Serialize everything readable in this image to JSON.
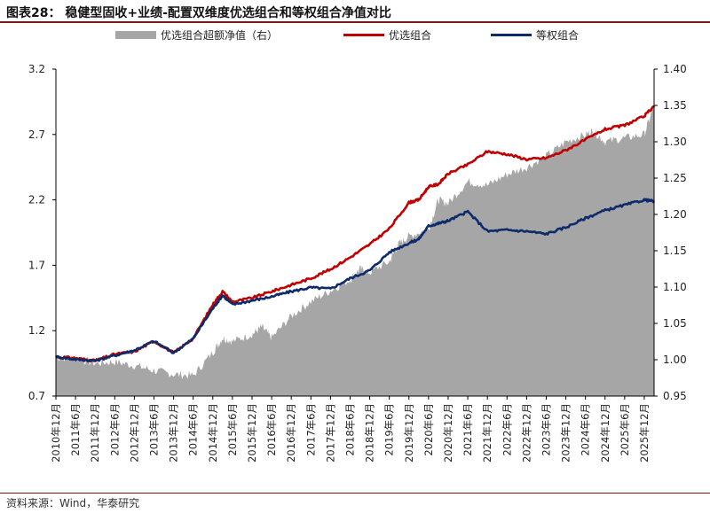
{
  "title": "图表28：  稳健型固收+业绩-配置双维度优选组合和等权组合净值对比",
  "source": "资料来源：Wind，华泰研究",
  "chart_data": {
    "type": "line",
    "title": "图表28：  稳健型固收+业绩-配置双维度优选组合和等权组合净值对比",
    "legend_position": "top",
    "grid": false,
    "x_tick_labels": [
      "2010年12月",
      "2011年6月",
      "2011年12月",
      "2012年6月",
      "2012年12月",
      "2013年6月",
      "2013年12月",
      "2014年6月",
      "2014年12月",
      "2015年6月",
      "2015年12月",
      "2016年6月",
      "2016年12月",
      "2017年6月",
      "2017年12月",
      "2018年6月",
      "2018年12月",
      "2019年6月",
      "2019年12月",
      "2020年6月",
      "2020年12月",
      "2021年6月",
      "2021年12月",
      "2022年6月",
      "2022年12月",
      "2023年6月",
      "2023年12月",
      "2024年6月",
      "2024年12月",
      "2025年6月",
      "2025年12月"
    ],
    "y_left": {
      "ticks": [
        "0.7",
        "1.2",
        "1.7",
        "2.2",
        "2.7",
        "3.2"
      ],
      "ylim": [
        0.7,
        3.2
      ]
    },
    "y_right": {
      "ticks": [
        "0.95",
        "1.00",
        "1.05",
        "1.10",
        "1.15",
        "1.20",
        "1.25",
        "1.30",
        "1.35",
        "1.40"
      ],
      "ylim": [
        0.95,
        1.4
      ]
    },
    "series": [
      {
        "name": "优选组合超额净值（右）",
        "kind": "area",
        "axis": "right",
        "color": "#a6a6a6",
        "x": [
          0,
          1,
          2,
          3,
          4,
          5,
          6,
          7,
          8,
          8.5,
          9,
          10,
          10.5,
          11,
          12,
          13,
          14,
          15,
          15.5,
          16,
          17,
          17.5,
          18,
          19,
          19.5,
          20,
          21,
          22,
          23,
          24,
          25,
          26,
          27,
          27.4,
          28,
          29,
          30,
          30.5
        ],
        "values": [
          1.003,
          1.002,
          0.995,
          0.997,
          0.992,
          0.985,
          0.98,
          0.978,
          1.01,
          1.03,
          1.025,
          1.035,
          1.045,
          1.03,
          1.06,
          1.08,
          1.095,
          1.11,
          1.125,
          1.12,
          1.135,
          1.16,
          1.17,
          1.18,
          1.22,
          1.215,
          1.245,
          1.24,
          1.255,
          1.265,
          1.28,
          1.3,
          1.31,
          1.315,
          1.3,
          1.305,
          1.31,
          1.35
        ]
      },
      {
        "name": "优选组合",
        "kind": "line",
        "axis": "left",
        "color": "#c00000",
        "x": [
          0,
          1,
          2,
          3,
          4,
          5,
          6,
          7,
          8,
          8.5,
          9,
          10,
          11,
          12,
          13,
          14,
          15,
          16,
          17,
          18,
          18.5,
          19,
          19.5,
          20,
          21,
          22,
          23,
          24,
          25,
          26,
          27,
          28,
          29,
          30,
          30.5
        ],
        "values": [
          1.0,
          0.99,
          0.97,
          1.02,
          1.04,
          1.12,
          1.03,
          1.14,
          1.4,
          1.5,
          1.42,
          1.45,
          1.5,
          1.55,
          1.6,
          1.67,
          1.76,
          1.86,
          1.98,
          2.18,
          2.2,
          2.3,
          2.32,
          2.4,
          2.47,
          2.57,
          2.55,
          2.51,
          2.52,
          2.58,
          2.66,
          2.74,
          2.77,
          2.84,
          2.92
        ]
      },
      {
        "name": "等权组合",
        "kind": "line",
        "axis": "left",
        "color": "#0d2b6b",
        "x": [
          0,
          1,
          2,
          3,
          4,
          5,
          6,
          7,
          8,
          8.5,
          9,
          10,
          11,
          12,
          13,
          14,
          15,
          16,
          17,
          18,
          18.5,
          19,
          19.5,
          20,
          21,
          22,
          23,
          24,
          25,
          26,
          27,
          28,
          29,
          30,
          30.5
        ],
        "values": [
          1.0,
          0.98,
          0.97,
          1.01,
          1.05,
          1.12,
          1.03,
          1.14,
          1.37,
          1.47,
          1.4,
          1.43,
          1.46,
          1.5,
          1.53,
          1.52,
          1.6,
          1.66,
          1.8,
          1.87,
          1.9,
          2.0,
          2.02,
          2.04,
          2.11,
          1.96,
          1.97,
          1.96,
          1.94,
          1.99,
          2.06,
          2.12,
          2.16,
          2.2,
          2.19
        ]
      }
    ]
  }
}
